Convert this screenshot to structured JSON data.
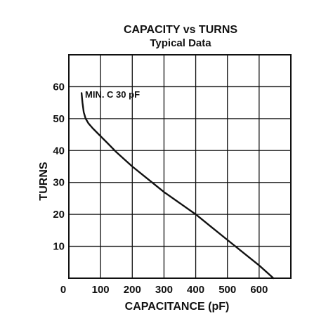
{
  "chart_data": {
    "type": "line",
    "title": "CAPACITY vs TURNS",
    "subtitle": "Typical Data",
    "xlabel": "CAPACITANCE (pF)",
    "ylabel": "TURNS",
    "xlim": [
      0,
      700
    ],
    "ylim": [
      0,
      70
    ],
    "x_ticks": [
      "0",
      "100",
      "200",
      "300",
      "400",
      "500",
      "600"
    ],
    "y_ticks": [
      "10",
      "20",
      "30",
      "40",
      "50",
      "60"
    ],
    "grid": true,
    "annotation": "MIN. C 30 pF",
    "series": [
      {
        "name": "",
        "x": [
          40,
          43,
          47,
          53,
          62,
          75,
          95,
          120,
          150,
          200,
          250,
          300,
          350,
          400,
          450,
          500,
          550,
          600,
          645
        ],
        "y": [
          58,
          55,
          52,
          50,
          48.5,
          47,
          45,
          42.5,
          39.5,
          35,
          31,
          27,
          23.5,
          20,
          16,
          12,
          8,
          4,
          0
        ]
      }
    ]
  }
}
